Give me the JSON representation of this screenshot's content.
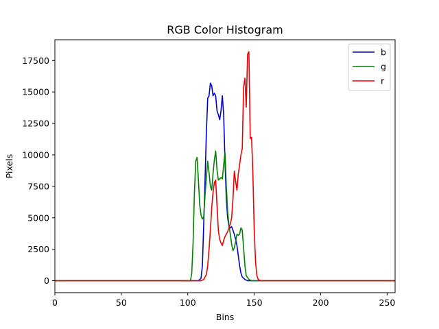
{
  "chart_data": {
    "type": "line",
    "title": "RGB Color Histogram",
    "xlabel": "Bins",
    "ylabel": "Pixels",
    "xlim": [
      0,
      256
    ],
    "ylim": [
      -950,
      19150
    ],
    "xticks": [
      0,
      50,
      100,
      150,
      200,
      250
    ],
    "yticks": [
      0,
      2500,
      5000,
      7500,
      10000,
      12500,
      15000,
      17500
    ],
    "grid": false,
    "legend_position": "top-right",
    "series": [
      {
        "name": "b",
        "color": "#0000cc",
        "points": [
          [
            0,
            0
          ],
          [
            108,
            0
          ],
          [
            110,
            200
          ],
          [
            111,
            1200
          ],
          [
            112,
            4500
          ],
          [
            113,
            8000
          ],
          [
            114,
            11800
          ],
          [
            115,
            14500
          ],
          [
            116,
            14700
          ],
          [
            117,
            15700
          ],
          [
            118,
            15500
          ],
          [
            119,
            14700
          ],
          [
            120,
            14900
          ],
          [
            121,
            14700
          ],
          [
            122,
            13500
          ],
          [
            123,
            13200
          ],
          [
            124,
            12800
          ],
          [
            125,
            13500
          ],
          [
            126,
            14700
          ],
          [
            127,
            13200
          ],
          [
            128,
            9500
          ],
          [
            129,
            6500
          ],
          [
            130,
            5000
          ],
          [
            131,
            4300
          ],
          [
            132,
            4200
          ],
          [
            133,
            4300
          ],
          [
            134,
            4000
          ],
          [
            135,
            3700
          ],
          [
            136,
            3300
          ],
          [
            137,
            2800
          ],
          [
            138,
            2000
          ],
          [
            139,
            1200
          ],
          [
            140,
            600
          ],
          [
            141,
            300
          ],
          [
            143,
            100
          ],
          [
            145,
            0
          ],
          [
            256,
            0
          ]
        ]
      },
      {
        "name": "g",
        "color": "#008000",
        "points": [
          [
            0,
            0
          ],
          [
            102,
            0
          ],
          [
            103,
            600
          ],
          [
            104,
            3000
          ],
          [
            105,
            7000
          ],
          [
            106,
            9500
          ],
          [
            107,
            9800
          ],
          [
            108,
            8000
          ],
          [
            109,
            6000
          ],
          [
            110,
            5200
          ],
          [
            111,
            4900
          ],
          [
            112,
            5100
          ],
          [
            113,
            6800
          ],
          [
            114,
            8200
          ],
          [
            115,
            9500
          ],
          [
            116,
            8600
          ],
          [
            117,
            7500
          ],
          [
            118,
            7200
          ],
          [
            119,
            8500
          ],
          [
            120,
            9600
          ],
          [
            121,
            10300
          ],
          [
            122,
            8800
          ],
          [
            123,
            8000
          ],
          [
            124,
            8100
          ],
          [
            125,
            8200
          ],
          [
            126,
            8100
          ],
          [
            127,
            9200
          ],
          [
            128,
            10200
          ],
          [
            129,
            7500
          ],
          [
            130,
            5500
          ],
          [
            131,
            4400
          ],
          [
            132,
            3700
          ],
          [
            133,
            2900
          ],
          [
            134,
            2400
          ],
          [
            135,
            2600
          ],
          [
            136,
            3100
          ],
          [
            137,
            3700
          ],
          [
            138,
            3600
          ],
          [
            139,
            3700
          ],
          [
            140,
            4200
          ],
          [
            141,
            4000
          ],
          [
            142,
            2600
          ],
          [
            143,
            1200
          ],
          [
            144,
            400
          ],
          [
            146,
            100
          ],
          [
            148,
            0
          ],
          [
            256,
            0
          ]
        ]
      },
      {
        "name": "r",
        "color": "#ee0000",
        "points": [
          [
            0,
            0
          ],
          [
            110,
            0
          ],
          [
            112,
            100
          ],
          [
            114,
            500
          ],
          [
            115,
            1200
          ],
          [
            116,
            2500
          ],
          [
            117,
            4000
          ],
          [
            118,
            5800
          ],
          [
            119,
            7000
          ],
          [
            120,
            7800
          ],
          [
            121,
            8000
          ],
          [
            122,
            6000
          ],
          [
            123,
            4000
          ],
          [
            124,
            3300
          ],
          [
            125,
            3000
          ],
          [
            126,
            2800
          ],
          [
            127,
            3200
          ],
          [
            128,
            3500
          ],
          [
            129,
            3700
          ],
          [
            130,
            3900
          ],
          [
            131,
            4200
          ],
          [
            132,
            4500
          ],
          [
            133,
            5000
          ],
          [
            134,
            6500
          ],
          [
            135,
            8700
          ],
          [
            136,
            7900
          ],
          [
            137,
            7200
          ],
          [
            138,
            8500
          ],
          [
            139,
            9200
          ],
          [
            140,
            10000
          ],
          [
            141,
            10500
          ],
          [
            142,
            15400
          ],
          [
            143,
            16100
          ],
          [
            144,
            13800
          ],
          [
            145,
            18000
          ],
          [
            146,
            18200
          ],
          [
            147,
            11300
          ],
          [
            148,
            11400
          ],
          [
            149,
            8500
          ],
          [
            150,
            4000
          ],
          [
            151,
            1500
          ],
          [
            152,
            400
          ],
          [
            153,
            100
          ],
          [
            155,
            0
          ],
          [
            256,
            0
          ]
        ]
      }
    ]
  }
}
